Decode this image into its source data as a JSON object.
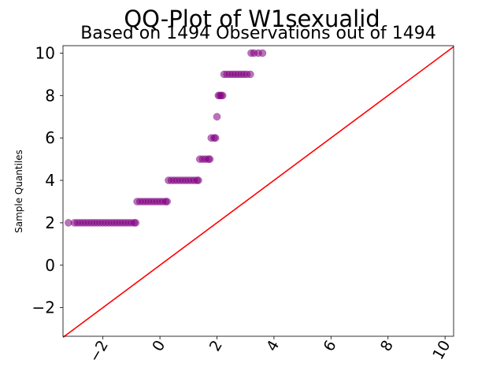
{
  "chart_data": {
    "type": "scatter",
    "title": "QQ-Plot of W1sexualid",
    "subtitle": "Based on 1494 Observations out of 1494",
    "xlabel": "",
    "ylabel": "Sample Quantiles",
    "xlim": [
      -3.4,
      10.3
    ],
    "ylim": [
      -3.35,
      10.35
    ],
    "xticks": [
      -2,
      0,
      2,
      4,
      6,
      8,
      10
    ],
    "yticks": [
      -2,
      0,
      2,
      4,
      6,
      8,
      10
    ],
    "xtick_labels": [
      "−2",
      "0",
      "2",
      "4",
      "6",
      "8",
      "10"
    ],
    "ytick_labels": [
      "−2",
      "0",
      "2",
      "4",
      "6",
      "8",
      "10"
    ],
    "grid": false,
    "point_color": "#800080",
    "line_color": "#ff0000",
    "reference_line": {
      "from": [
        -3.4,
        -3.4
      ],
      "to": [
        10.3,
        10.3
      ]
    },
    "series": [
      {
        "values": [
          [
            -3.21,
            2
          ],
          [
            -3.0,
            2
          ],
          [
            -2.9,
            2
          ],
          [
            -2.8,
            2
          ],
          [
            -2.7,
            2
          ],
          [
            -2.6,
            2
          ],
          [
            -2.5,
            2
          ],
          [
            -2.4,
            2
          ],
          [
            -2.3,
            2
          ],
          [
            -2.2,
            2
          ],
          [
            -2.1,
            2
          ],
          [
            -2.0,
            2
          ],
          [
            -1.9,
            2
          ],
          [
            -1.8,
            2
          ],
          [
            -1.7,
            2
          ],
          [
            -1.6,
            2
          ],
          [
            -1.5,
            2
          ],
          [
            -1.4,
            2
          ],
          [
            -1.3,
            2
          ],
          [
            -1.2,
            2
          ],
          [
            -1.1,
            2
          ],
          [
            -1.0,
            2
          ],
          [
            -0.9,
            2
          ],
          [
            -0.85,
            2
          ],
          [
            -0.8,
            3
          ],
          [
            -0.7,
            3
          ],
          [
            -0.6,
            3
          ],
          [
            -0.5,
            3
          ],
          [
            -0.4,
            3
          ],
          [
            -0.3,
            3
          ],
          [
            -0.2,
            3
          ],
          [
            -0.1,
            3
          ],
          [
            0.0,
            3
          ],
          [
            0.1,
            3
          ],
          [
            0.2,
            3
          ],
          [
            0.25,
            3
          ],
          [
            0.3,
            4
          ],
          [
            0.4,
            4
          ],
          [
            0.5,
            4
          ],
          [
            0.6,
            4
          ],
          [
            0.7,
            4
          ],
          [
            0.8,
            4
          ],
          [
            0.9,
            4
          ],
          [
            1.0,
            4
          ],
          [
            1.1,
            4
          ],
          [
            1.2,
            4
          ],
          [
            1.3,
            4
          ],
          [
            1.35,
            4
          ],
          [
            1.4,
            5
          ],
          [
            1.5,
            5
          ],
          [
            1.6,
            5
          ],
          [
            1.7,
            5
          ],
          [
            1.75,
            5
          ],
          [
            1.8,
            6
          ],
          [
            1.9,
            6
          ],
          [
            1.95,
            6
          ],
          [
            2.0,
            7
          ],
          [
            2.05,
            8
          ],
          [
            2.1,
            8
          ],
          [
            2.15,
            8
          ],
          [
            2.2,
            8
          ],
          [
            2.25,
            9
          ],
          [
            2.35,
            9
          ],
          [
            2.45,
            9
          ],
          [
            2.55,
            9
          ],
          [
            2.65,
            9
          ],
          [
            2.75,
            9
          ],
          [
            2.85,
            9
          ],
          [
            2.95,
            9
          ],
          [
            3.05,
            9
          ],
          [
            3.17,
            9
          ],
          [
            3.2,
            10
          ],
          [
            3.3,
            10
          ],
          [
            3.45,
            10
          ],
          [
            3.6,
            10
          ]
        ]
      }
    ]
  }
}
